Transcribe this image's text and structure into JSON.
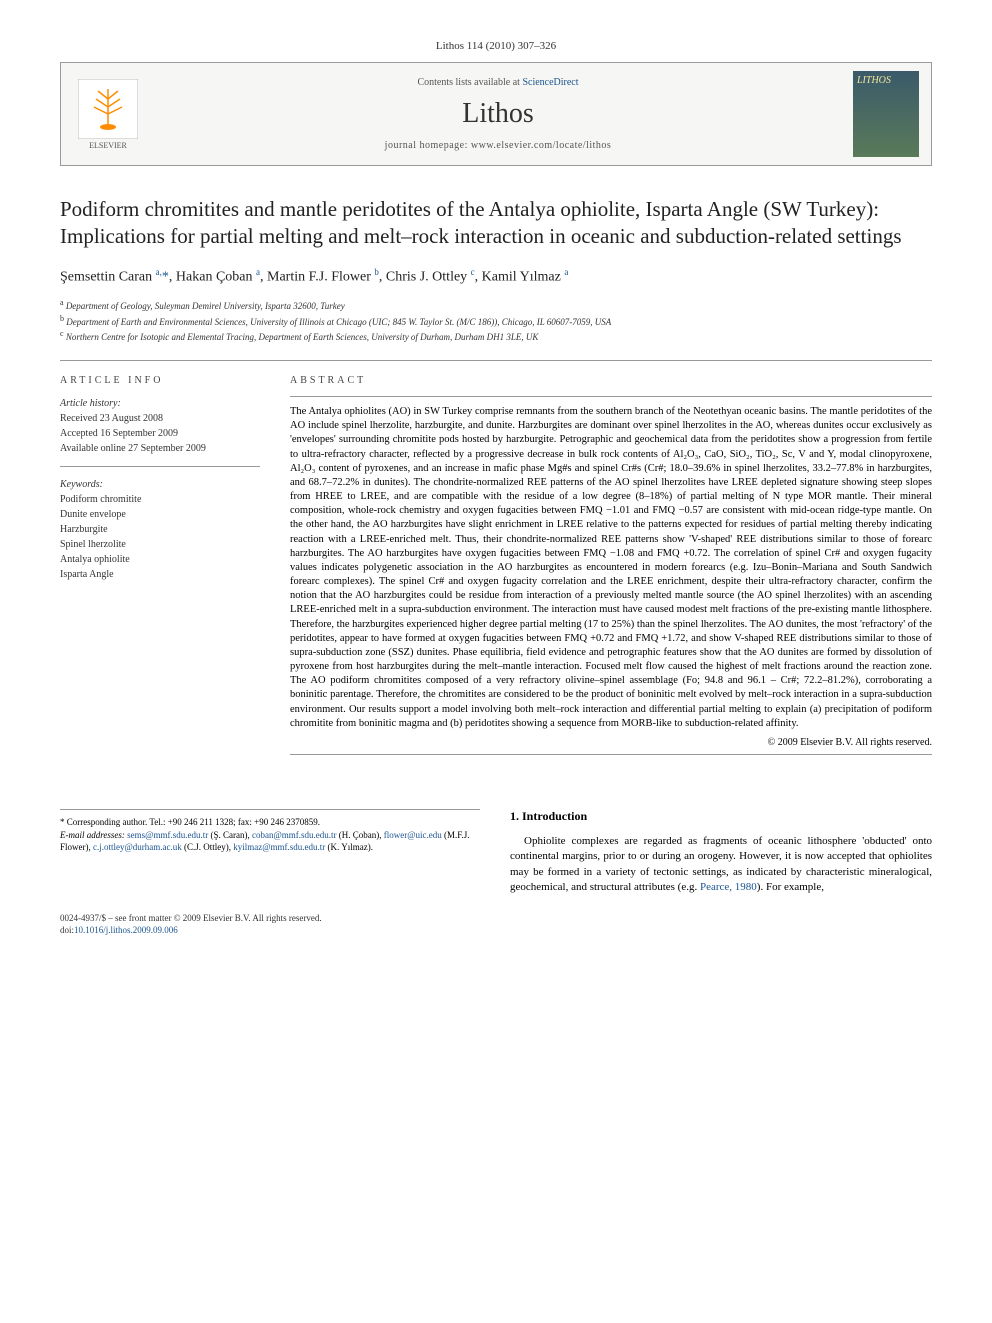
{
  "journal_cite": "Lithos 114 (2010) 307–326",
  "banner": {
    "contents_prefix": "Contents lists available at ",
    "contents_link": "ScienceDirect",
    "journal_name": "Lithos",
    "homepage_prefix": "journal homepage: ",
    "homepage_url": "www.elsevier.com/locate/lithos",
    "publisher": "ELSEVIER",
    "cover_title": "LITHOS"
  },
  "title": "Podiform chromitites and mantle peridotites of the Antalya ophiolite, Isparta Angle (SW Turkey): Implications for partial melting and melt–rock interaction in oceanic and subduction-related settings",
  "authors_html": "Şemsettin Caran <sup>a,</sup><span class='star'>*</span>, Hakan Çoban <sup>a</sup>, Martin F.J. Flower <sup>b</sup>, Chris J. Ottley <sup>c</sup>, Kamil Yılmaz <sup>a</sup>",
  "affiliations": {
    "a": "Department of Geology, Suleyman Demirel University, Isparta 32600, Turkey",
    "b": "Department of Earth and Environmental Sciences, University of Illinois at Chicago (UIC; 845 W. Taylor St. (M/C 186)), Chicago, IL 60607-7059, USA",
    "c": "Northern Centre for Isotopic and Elemental Tracing, Department of Earth Sciences, University of Durham, Durham DH1 3LE, UK"
  },
  "article_info": {
    "label": "ARTICLE INFO",
    "history_label": "Article history:",
    "received": "Received 23 August 2008",
    "accepted": "Accepted 16 September 2009",
    "online": "Available online 27 September 2009",
    "keywords_label": "Keywords:",
    "keywords": [
      "Podiform chromitite",
      "Dunite envelope",
      "Harzburgite",
      "Spinel lherzolite",
      "Antalya ophiolite",
      "Isparta Angle"
    ]
  },
  "abstract": {
    "label": "ABSTRACT",
    "text": "The Antalya ophiolites (AO) in SW Turkey comprise remnants from the southern branch of the Neotethyan oceanic basins. The mantle peridotites of the AO include spinel lherzolite, harzburgite, and dunite. Harzburgites are dominant over spinel lherzolites in the AO, whereas dunites occur exclusively as 'envelopes' surrounding chromitite pods hosted by harzburgite. Petrographic and geochemical data from the peridotites show a progression from fertile to ultra-refractory character, reflected by a progressive decrease in bulk rock contents of Al₂O₃, CaO, SiO₂, TiO₂, Sc, V and Y, modal clinopyroxene, Al₂O₃ content of pyroxenes, and an increase in mafic phase Mg#s and spinel Cr#s (Cr#; 18.0–39.6% in spinel lherzolites, 33.2–77.8% in harzburgites, and 68.7–72.2% in dunites). The chondrite-normalized REE patterns of the AO spinel lherzolites have LREE depleted signature showing steep slopes from HREE to LREE, and are compatible with the residue of a low degree (8–18%) of partial melting of N type MOR mantle. Their mineral composition, whole-rock chemistry and oxygen fugacities between FMQ −1.01 and FMQ −0.57 are consistent with mid-ocean ridge-type mantle. On the other hand, the AO harzburgites have slight enrichment in LREE relative to the patterns expected for residues of partial melting thereby indicating reaction with a LREE-enriched melt. Thus, their chondrite-normalized REE patterns show 'V-shaped' REE distributions similar to those of forearc harzburgites. The AO harzburgites have oxygen fugacities between FMQ −1.08 and FMQ +0.72. The correlation of spinel Cr# and oxygen fugacity values indicates polygenetic association in the AO harzburgites as encountered in modern forearcs (e.g. Izu–Bonin–Mariana and South Sandwich forearc complexes). The spinel Cr# and oxygen fugacity correlation and the LREE enrichment, despite their ultra-refractory character, confirm the notion that the AO harzburgites could be residue from interaction of a previously melted mantle source (the AO spinel lherzolites) with an ascending LREE-enriched melt in a supra-subduction environment. The interaction must have caused modest melt fractions of the pre-existing mantle lithosphere. Therefore, the harzburgites experienced higher degree partial melting (17 to 25%) than the spinel lherzolites. The AO dunites, the most 'refractory' of the peridotites, appear to have formed at oxygen fugacities between FMQ +0.72 and FMQ +1.72, and show V-shaped REE distributions similar to those of supra-subduction zone (SSZ) dunites. Phase equilibria, field evidence and petrographic features show that the AO dunites are formed by dissolution of pyroxene from host harzburgites during the melt–mantle interaction. Focused melt flow caused the highest of melt fractions around the reaction zone. The AO podiform chromitites composed of a very refractory olivine–spinel assemblage (Fo; 94.8 and 96.1 – Cr#; 72.2–81.2%), corroborating a boninitic parentage. Therefore, the chromitites are considered to be the product of boninitic melt evolved by melt–rock interaction in a supra-subduction environment. Our results support a model involving both melt–rock interaction and differential partial melting to explain (a) precipitation of podiform chromitite from boninitic magma and (b) peridotites showing a sequence from MORB-like to subduction-related affinity.",
    "copyright": "© 2009 Elsevier B.V. All rights reserved."
  },
  "intro": {
    "heading": "1. Introduction",
    "text": "Ophiolite complexes are regarded as fragments of oceanic lithosphere 'obducted' onto continental margins, prior to or during an orogeny. However, it is now accepted that ophiolites may be formed in a variety of tectonic settings, as indicated by characteristic mineralogical, geochemical, and structural attributes (e.g. ",
    "cite": "Pearce, 1980",
    "text_after": "). For example,"
  },
  "corr": {
    "star": "*",
    "label": "Corresponding author. Tel.: +90 246 211 1328; fax: +90 246 2370859.",
    "email_label": "E-mail addresses:",
    "emails": [
      {
        "addr": "sems@mmf.sdu.edu.tr",
        "name": "(Ş. Caran)"
      },
      {
        "addr": "coban@mmf.sdu.edu.tr",
        "name": "(H. Çoban)"
      },
      {
        "addr": "flower@uic.edu",
        "name": "(M.F.J. Flower)"
      },
      {
        "addr": "c.j.ottley@durham.ac.uk",
        "name": "(C.J. Ottley)"
      },
      {
        "addr": "kyilmaz@mmf.sdu.edu.tr",
        "name": "(K. Yılmaz)"
      }
    ]
  },
  "footer": {
    "issn": "0024-4937/$ – see front matter © 2009 Elsevier B.V. All rights reserved.",
    "doi_label": "doi:",
    "doi": "10.1016/j.lithos.2009.09.006"
  },
  "colors": {
    "link": "#1a5490",
    "text": "#000000",
    "border": "#999999"
  }
}
